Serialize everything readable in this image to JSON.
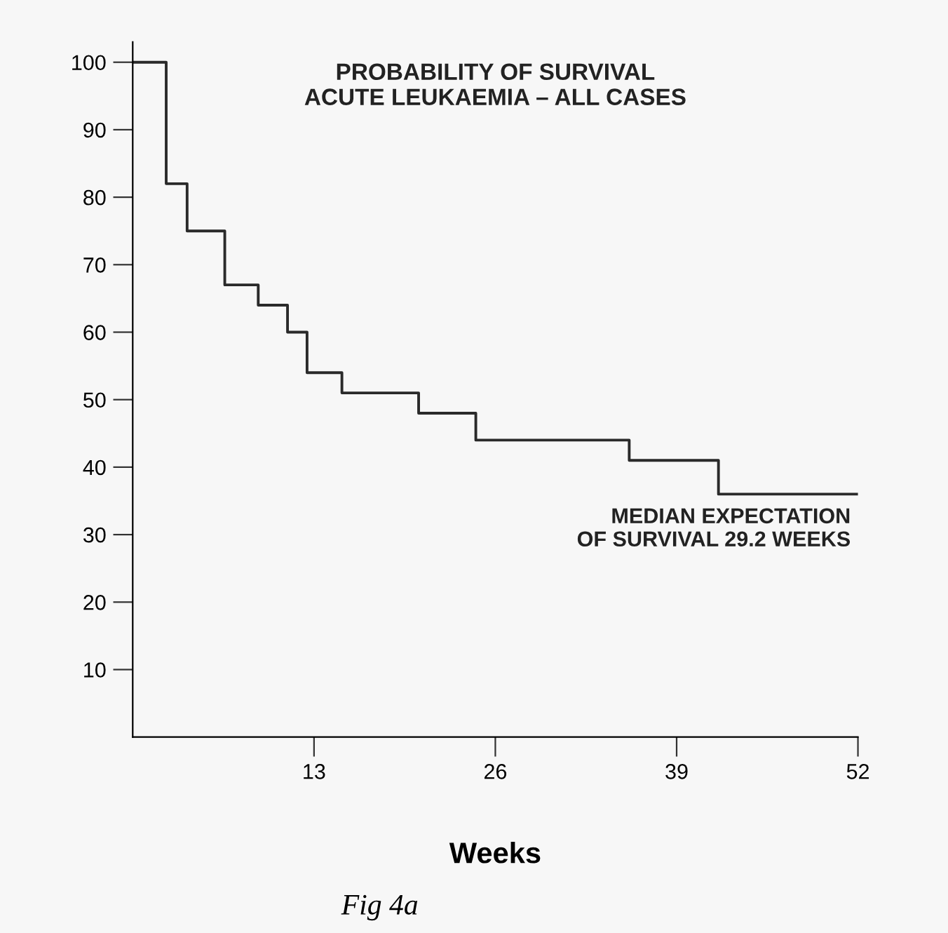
{
  "chart_data": {
    "type": "step",
    "title": "PROBABILITY OF SURVIVAL\nACUTE LEUKAEMIA – ALL CASES",
    "xlabel": "Weeks",
    "annotations": [
      "MEDIAN EXPECTATION\nOF SURVIVAL 29.2 WEEKS",
      "Fig 4a"
    ],
    "x": [
      0,
      2.4,
      3.9,
      6.6,
      9.0,
      11.1,
      12.5,
      15.0,
      20.5,
      24.6,
      35.6,
      42.0,
      52
    ],
    "values": [
      100,
      82,
      75,
      67,
      64,
      60,
      54,
      51,
      48,
      44,
      41,
      36,
      36
    ],
    "color": "#2a2a2a",
    "xlim": [
      0,
      52
    ],
    "ylim": [
      0,
      103
    ],
    "xticks": [
      13,
      26,
      39,
      52
    ],
    "yticks": [
      10,
      20,
      30,
      40,
      50,
      60,
      70,
      80,
      90,
      100
    ],
    "grid": false,
    "legend": false,
    "line_style": "solid",
    "marker": "none"
  }
}
